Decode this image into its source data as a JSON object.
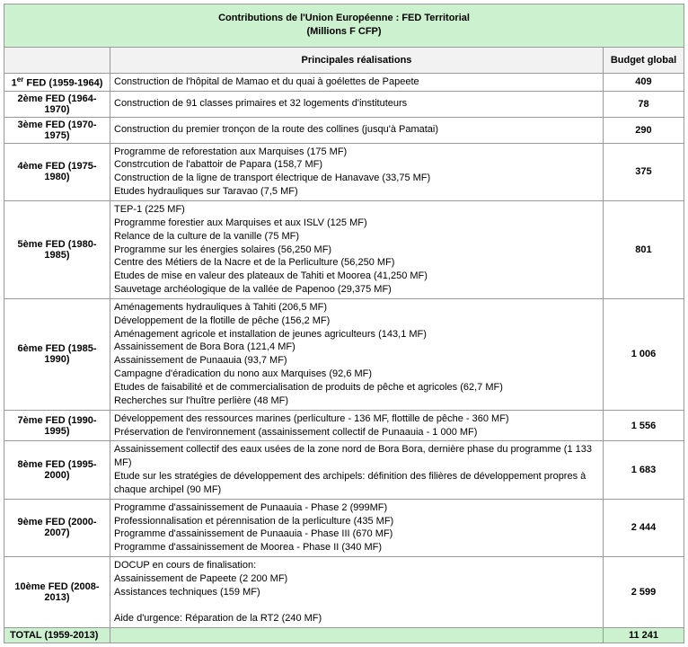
{
  "title_line1": "Contributions de l'Union Européenne : FED Territorial",
  "title_line2": "(Millions F CFP)",
  "headers": {
    "fed": "",
    "real": "Principales réalisations",
    "budget": "Budget global"
  },
  "rows": [
    {
      "fed_prefix": "1",
      "fed_sup": "er",
      "fed_suffix": " FED (1959-1964)",
      "lines": [
        "Construction de l'hôpital de Mamao et du quai à goélettes de Papeete"
      ],
      "budget": "409"
    },
    {
      "fed": "2ème FED (1964-1970)",
      "lines": [
        "Construction de 91 classes primaires et 32 logements d'instituteurs"
      ],
      "budget": "78"
    },
    {
      "fed": "3ème FED (1970-1975)",
      "lines": [
        "Construction du premier tronçon de la route des collines (jusqu'à Pamatai)"
      ],
      "budget": "290"
    },
    {
      "fed": "4ème FED (1975-1980)",
      "lines": [
        "Programme de reforestation aux Marquises (175 MF)",
        "Constrcution de l'abattoir de Papara (158,7 MF)",
        "Construction de la ligne de transport électrique de Hanavave (33,75 MF)",
        "Etudes hydrauliques sur Taravao (7,5 MF)"
      ],
      "budget": "375"
    },
    {
      "fed": "5ème FED (1980-1985)",
      "lines": [
        "TEP-1 (225 MF)",
        "Programme forestier aux Marquises et aux ISLV (125 MF)",
        "Relance de la culture de la vanille (75 MF)",
        "Programme sur les énergies solaires (56,250 MF)",
        "Centre des Métiers de la Nacre et de la Perliculture (56,250 MF)",
        "Etudes de mise en valeur des plateaux de Tahiti et Moorea (41,250 MF)",
        "Sauvetage archéologique de la vallée de Papenoo (29,375 MF)"
      ],
      "budget": "801"
    },
    {
      "fed": "6ème FED (1985-1990)",
      "lines": [
        "Aménagements hydrauliques à Tahiti (206,5 MF)",
        "Développement de la flotille de pêche (156,2 MF)",
        "Aménagement agricole et installation de jeunes agriculteurs (143,1 MF)",
        "Assainissement de Bora Bora (121,4 MF)",
        "Assainissement de Punaauia (93,7 MF)",
        "Campagne d'éradication du nono aux Marquises (92,6 MF)",
        "Etudes de faisabilité et de commercialisation de produits de pêche et agricoles (62,7 MF)",
        "Recherches sur l'huître perlière (48 MF)"
      ],
      "budget": "1 006"
    },
    {
      "fed": "7ème FED (1990-1995)",
      "lines": [
        "Développement des ressources marines (perliculture - 136 MF, flottille de pêche - 360 MF)",
        "Préservation de l'environnement (assainissement collectif de Punaauia - 1 000 MF)"
      ],
      "budget": "1 556"
    },
    {
      "fed": "8ème FED (1995-2000)",
      "lines": [
        "Assainissement collectif des eaux usées de la zone nord de Bora Bora, dernière phase du programme (1 133 MF)",
        "Etude sur les stratégies de développement des archipels: définition des filières de développement propres à chaque archipel (90 MF)"
      ],
      "budget": "1 683"
    },
    {
      "fed": "9ème FED (2000-2007)",
      "lines": [
        "Programme d'assainissement de Punaauia - Phase 2 (999MF)",
        "Professionnalisation et pérennisation de la perliculture (435 MF)",
        "Programme d'assainissement de Punaauia - Phase III (670 MF)",
        "Programme d'assainissement de Moorea - Phase II (340 MF)"
      ],
      "budget": "2 444"
    },
    {
      "fed": "10ème FED (2008-2013)",
      "lines": [
        "DOCUP en cours de finalisation:",
        "Assainissement de Papeete (2 200 MF)",
        "Assistances techniques (159 MF)",
        "",
        "Aide d'urgence: Réparation de la RT2 (240 MF)"
      ],
      "budget": "2 599"
    }
  ],
  "total": {
    "label": "TOTAL (1959-2013)",
    "real": "",
    "budget": "11 241"
  },
  "colors": {
    "highlight": "#ccf1ce",
    "border": "#999999"
  }
}
